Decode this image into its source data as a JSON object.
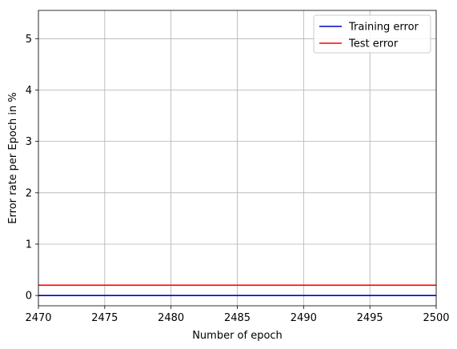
{
  "chart_data": {
    "type": "line",
    "title": "",
    "xlabel": "Number of epoch",
    "ylabel": "Error rate per Epoch in %",
    "xlim": [
      2470,
      2500
    ],
    "ylim": [
      -0.2,
      5.55
    ],
    "xticks": [
      2470,
      2475,
      2480,
      2485,
      2490,
      2495,
      2500
    ],
    "yticks": [
      0,
      1,
      2,
      3,
      4,
      5
    ],
    "grid": true,
    "legend_position": "top-right",
    "series": [
      {
        "name": "Training error",
        "color": "#0000cc",
        "x": [
          2470,
          2500
        ],
        "y": [
          0.0,
          0.0
        ]
      },
      {
        "name": "Test error",
        "color": "#ff0000",
        "x": [
          2470,
          2500
        ],
        "y": [
          0.2,
          0.2
        ]
      }
    ]
  }
}
